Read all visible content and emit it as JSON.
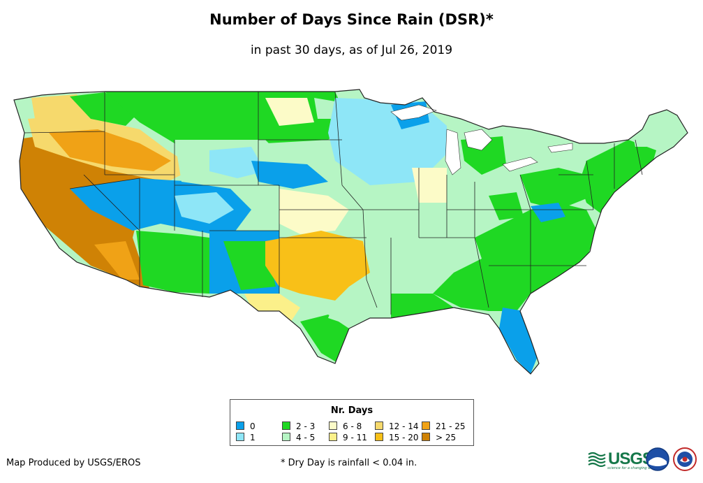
{
  "title": "Number of Days Since Rain (DSR)*",
  "subtitle": "in past 30 days, as of Jul 26, 2019",
  "legend": {
    "title": "Nr. Days",
    "items": [
      {
        "label": "0",
        "color": "#0aa0ea"
      },
      {
        "label": "1",
        "color": "#8ee6f7"
      },
      {
        "label": "2 - 3",
        "color": "#1fd823"
      },
      {
        "label": "4 - 5",
        "color": "#b6f5c4"
      },
      {
        "label": "6 - 8",
        "color": "#fcfbc8"
      },
      {
        "label": "9 - 11",
        "color": "#fbf08a"
      },
      {
        "label": "12 - 14",
        "color": "#f6d96c"
      },
      {
        "label": "15 - 20",
        "color": "#f8c018"
      },
      {
        "label": "21 - 25",
        "color": "#f0a216"
      },
      {
        "label": "> 25",
        "color": "#cf8205"
      }
    ]
  },
  "credit": "Map Produced by USGS/EROS",
  "footnote": "* Dry Day is rainfall < 0.04 in.",
  "logos": {
    "usgs": "USGS",
    "usgs_tagline": "science for a changing world",
    "noaa": "noaa-logo",
    "nws": "nws-logo"
  }
}
